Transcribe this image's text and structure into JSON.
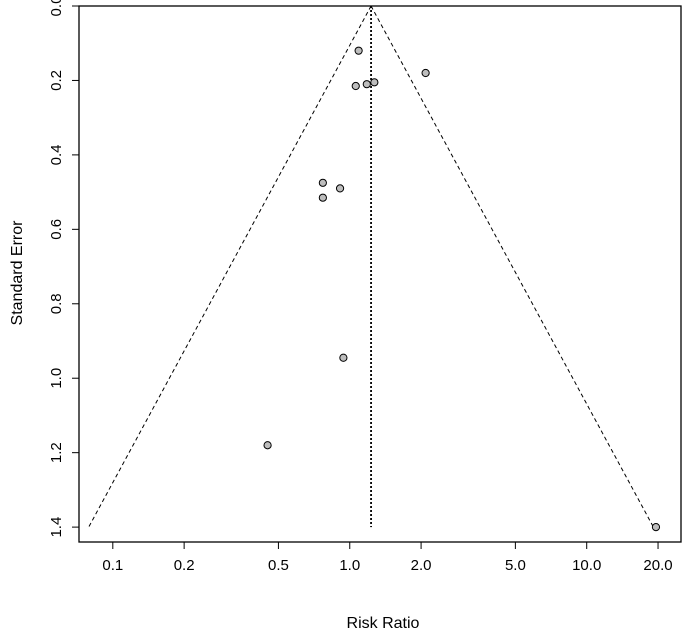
{
  "chart_data": {
    "type": "scatter",
    "title": "",
    "xlabel": "Risk Ratio",
    "ylabel": "Standard Error",
    "x_scale": "log",
    "x_ticks": [
      0.1,
      0.2,
      0.5,
      1.0,
      2.0,
      5.0,
      10.0,
      20.0
    ],
    "x_tick_labels": [
      "0.1",
      "0.2",
      "0.5",
      "1.0",
      "2.0",
      "5.0",
      "10.0",
      "20.0"
    ],
    "y_ticks": [
      0.0,
      0.2,
      0.4,
      0.6,
      0.8,
      1.0,
      1.2,
      1.4
    ],
    "y_tick_labels": [
      "0.0",
      "0.2",
      "0.4",
      "0.6",
      "0.8",
      "1.0",
      "1.2",
      "1.4"
    ],
    "y_reversed": true,
    "xlim": [
      0.072,
      25
    ],
    "ylim": [
      0,
      1.44
    ],
    "grid": false,
    "summary_estimate": 1.23,
    "funnel_se_max": 1.4,
    "colors": {
      "points": "#bdbdbd",
      "stroke": "#000000"
    },
    "points": [
      {
        "x": 1.09,
        "y": 0.12
      },
      {
        "x": 2.09,
        "y": 0.18
      },
      {
        "x": 1.06,
        "y": 0.215
      },
      {
        "x": 1.18,
        "y": 0.21
      },
      {
        "x": 1.27,
        "y": 0.205
      },
      {
        "x": 0.77,
        "y": 0.475
      },
      {
        "x": 0.91,
        "y": 0.49
      },
      {
        "x": 0.77,
        "y": 0.515
      },
      {
        "x": 0.94,
        "y": 0.945
      },
      {
        "x": 0.45,
        "y": 1.18
      },
      {
        "x": 19.6,
        "y": 1.4
      }
    ]
  }
}
